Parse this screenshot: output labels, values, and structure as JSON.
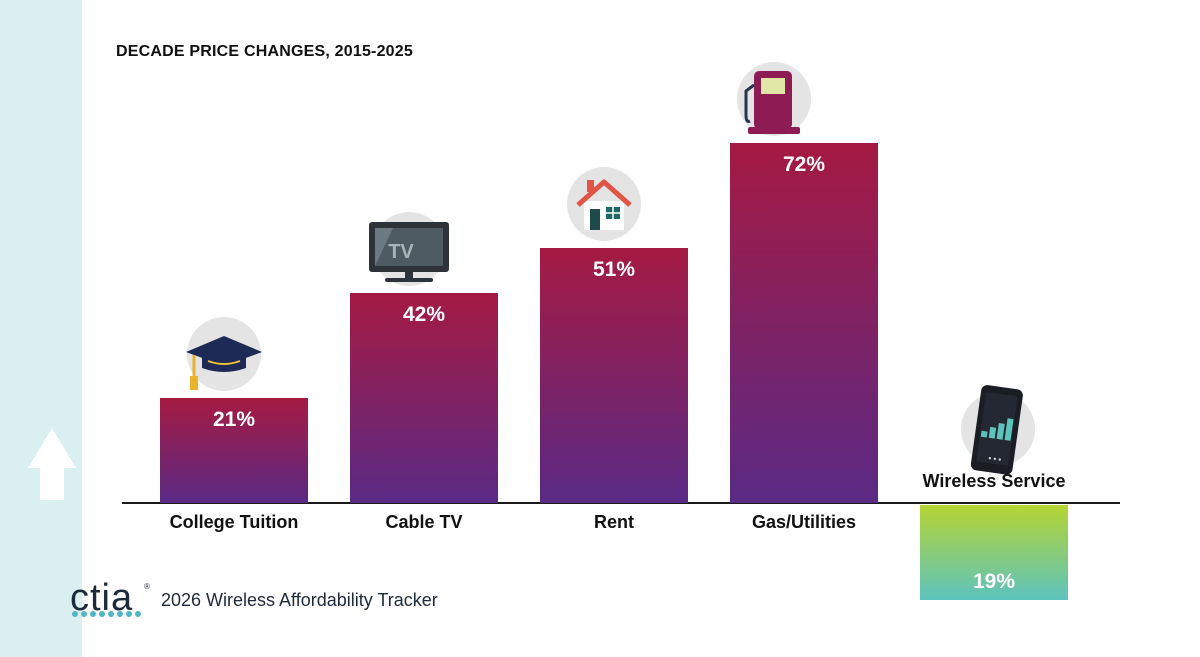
{
  "title": "DECADE PRICE CHANGES, 2015-2025",
  "footer": {
    "logo": "ctia",
    "tracker": "2026 Wireless Affordability Tracker"
  },
  "colors": {
    "bar_top": "#a51a42",
    "bar_bottom": "#5a2a85",
    "wireless_top": "#b6d433",
    "wireless_bottom": "#5cc3bd",
    "side_band": "#daf0f0",
    "icon_circle": "#e4e4e4"
  },
  "chart_data": {
    "type": "bar",
    "title": "DECADE PRICE CHANGES, 2015-2025",
    "categories": [
      "College Tuition",
      "Cable TV",
      "Rent",
      "Gas/Utilities",
      "Wireless Service"
    ],
    "values": [
      21,
      42,
      51,
      72,
      -19
    ],
    "data_labels": [
      "21%",
      "42%",
      "51%",
      "72%",
      "19%"
    ],
    "icons": [
      "graduation-cap-icon",
      "tv-icon",
      "house-icon",
      "gas-pump-icon",
      "smartphone-signal-icon"
    ],
    "unit": "%",
    "ylim": [
      -19,
      72
    ],
    "grid": false,
    "legend": "none"
  }
}
